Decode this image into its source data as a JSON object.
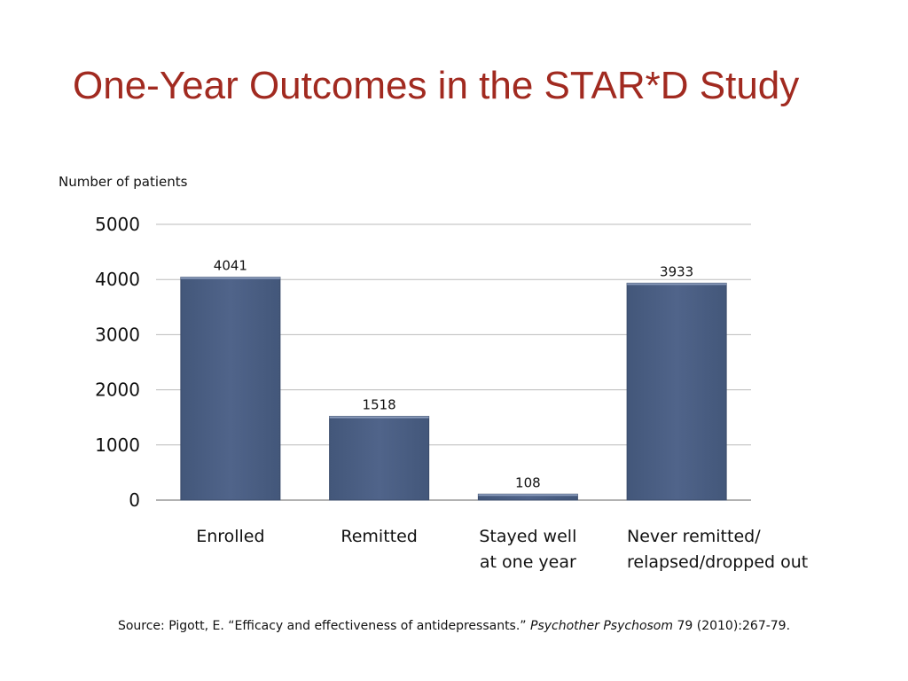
{
  "title": "One-Year Outcomes in the STAR*D Study",
  "chart_data": {
    "type": "bar",
    "ylabel": "Number of patients",
    "ylim": [
      0,
      5000
    ],
    "yticks": [
      "0",
      "1000",
      "2000",
      "3000",
      "4000",
      "5000"
    ],
    "grid": true,
    "categories": [
      [
        "Enrolled"
      ],
      [
        "Remitted"
      ],
      [
        "Stayed well",
        "at  one year"
      ],
      [
        "Never remitted/",
        "relapsed/dropped out"
      ]
    ],
    "values": [
      4041,
      1518,
      108,
      3933
    ],
    "data_labels": [
      "4041",
      "1518",
      "108",
      "3933"
    ],
    "bar_color": "#4a5d80"
  },
  "source": {
    "prefix": "Source: Pigott, E. “Efficacy and effectiveness of antidepressants.” ",
    "journal": "Psychother Psychosom",
    "suffix": " 79 (2010):267-79."
  }
}
